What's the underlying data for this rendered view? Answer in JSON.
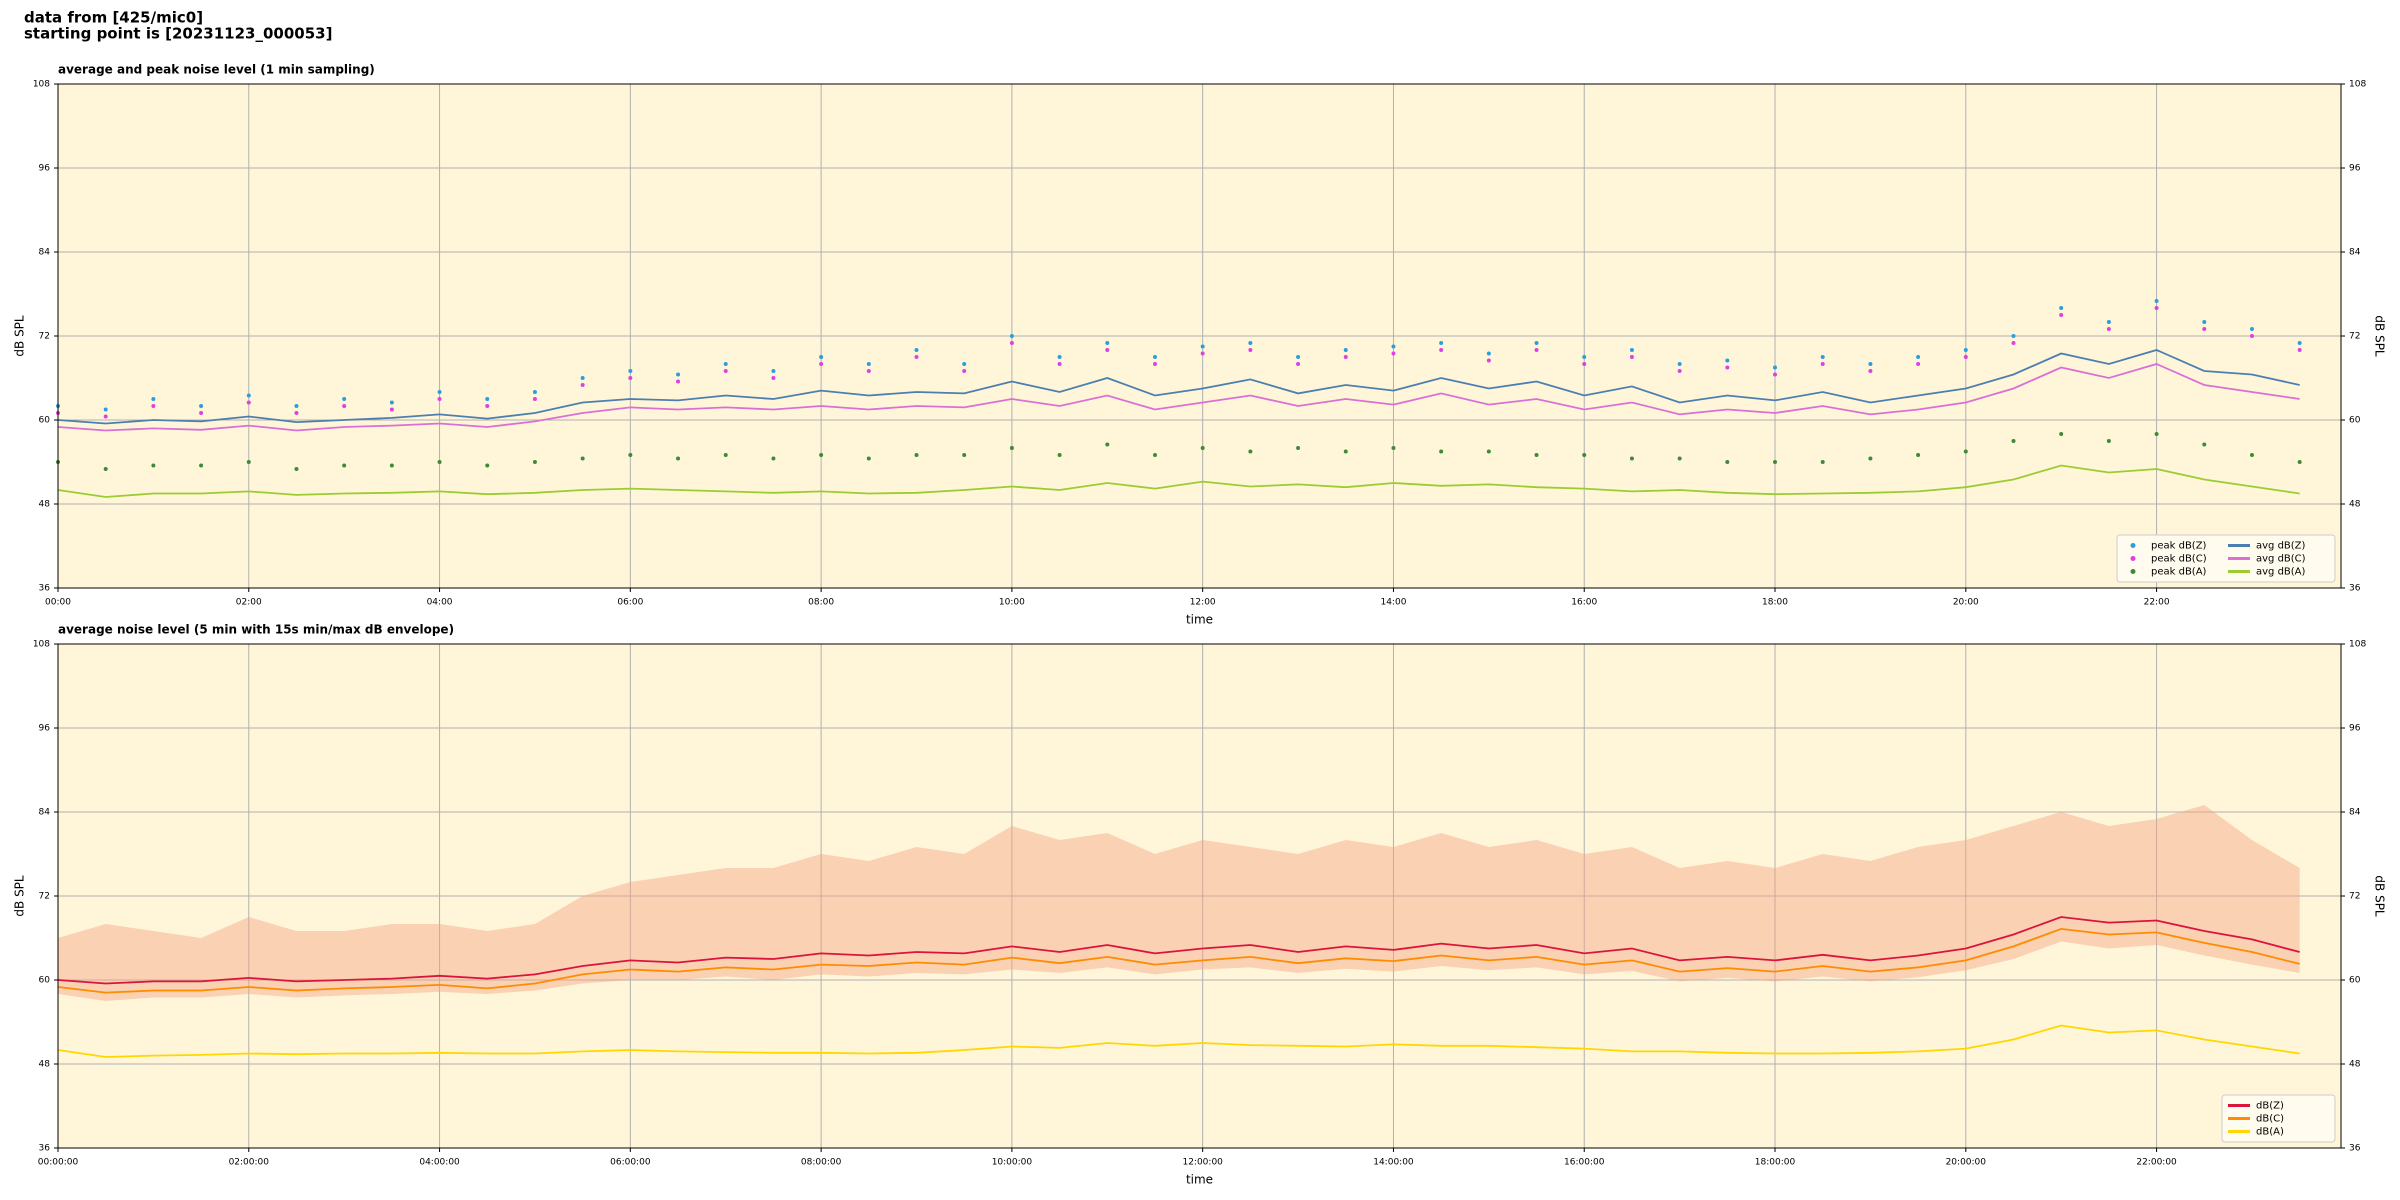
{
  "header": {
    "lines": [
      "data from [425/mic0]",
      "starting point is [20231123_000053]"
    ]
  },
  "chart_data": [
    {
      "type": "line",
      "title": "average and peak noise level (1 min sampling)",
      "xlabel": "time",
      "ylabel": "dB SPL",
      "xlim": [
        0,
        1436
      ],
      "ylim": [
        36,
        108
      ],
      "yticks": [
        36,
        48,
        60,
        72,
        84,
        96,
        108
      ],
      "xticks": [
        {
          "value": 0,
          "label": "00:00"
        },
        {
          "value": 120,
          "label": "02:00"
        },
        {
          "value": 240,
          "label": "04:00"
        },
        {
          "value": 360,
          "label": "06:00"
        },
        {
          "value": 480,
          "label": "08:00"
        },
        {
          "value": 600,
          "label": "10:00"
        },
        {
          "value": 720,
          "label": "12:00"
        },
        {
          "value": 840,
          "label": "14:00"
        },
        {
          "value": 960,
          "label": "16:00"
        },
        {
          "value": 1080,
          "label": "18:00"
        },
        {
          "value": 1200,
          "label": "20:00"
        },
        {
          "value": 1320,
          "label": "22:00"
        }
      ],
      "grid": true,
      "legend": "lower right",
      "legend_columns": 2,
      "background": "#fff6d9",
      "x": [
        0,
        30,
        60,
        90,
        120,
        150,
        180,
        210,
        240,
        270,
        300,
        330,
        360,
        390,
        420,
        450,
        480,
        510,
        540,
        570,
        600,
        630,
        660,
        690,
        720,
        750,
        780,
        810,
        840,
        870,
        900,
        930,
        960,
        990,
        1020,
        1050,
        1080,
        1110,
        1140,
        1170,
        1200,
        1230,
        1260,
        1290,
        1320,
        1350,
        1380,
        1410
      ],
      "series": [
        {
          "name": "peak dB(Z)",
          "style": "scatter",
          "color": "#2a9fe0",
          "values": [
            62,
            61.5,
            63,
            62,
            63.5,
            62,
            63,
            62.5,
            64,
            63,
            64,
            66,
            67,
            66.5,
            68,
            67,
            69,
            68,
            70,
            68,
            72,
            69,
            71,
            69,
            70.5,
            71,
            69,
            70,
            70.5,
            71,
            69.5,
            71,
            69,
            70,
            68,
            68.5,
            67.5,
            69,
            68,
            69,
            70,
            72,
            76,
            74,
            77,
            74,
            73,
            71
          ]
        },
        {
          "name": "peak dB(C)",
          "style": "scatter",
          "color": "#e040e0",
          "values": [
            61,
            60.5,
            62,
            61,
            62.5,
            61,
            62,
            61.5,
            63,
            62,
            63,
            65,
            66,
            65.5,
            67,
            66,
            68,
            67,
            69,
            67,
            71,
            68,
            70,
            68,
            69.5,
            70,
            68,
            69,
            69.5,
            70,
            68.5,
            70,
            68,
            69,
            67,
            67.5,
            66.5,
            68,
            67,
            68,
            69,
            71,
            75,
            73,
            76,
            73,
            72,
            70
          ]
        },
        {
          "name": "peak dB(A)",
          "style": "scatter",
          "color": "#3f8a3a",
          "values": [
            54,
            53,
            53.5,
            53.5,
            54,
            53,
            53.5,
            53.5,
            54,
            53.5,
            54,
            54.5,
            55,
            54.5,
            55,
            54.5,
            55,
            54.5,
            55,
            55,
            56,
            55,
            56.5,
            55,
            56,
            55.5,
            56,
            55.5,
            56,
            55.5,
            55.5,
            55,
            55,
            54.5,
            54.5,
            54,
            54,
            54,
            54.5,
            55,
            55.5,
            57,
            58,
            57,
            58,
            56.5,
            55,
            54
          ]
        },
        {
          "name": "avg dB(Z)",
          "style": "line",
          "color": "#4b7fb0",
          "values": [
            60,
            59.5,
            60,
            59.8,
            60.5,
            59.7,
            60,
            60.3,
            60.8,
            60.2,
            61,
            62.5,
            63,
            62.8,
            63.5,
            63,
            64.2,
            63.5,
            64,
            63.8,
            65.5,
            64,
            66,
            63.5,
            64.5,
            65.8,
            63.8,
            65,
            64.2,
            66,
            64.5,
            65.5,
            63.5,
            64.8,
            62.5,
            63.5,
            62.8,
            64,
            62.5,
            63.5,
            64.5,
            66.5,
            69.5,
            68,
            70,
            67,
            66.5,
            65
          ]
        },
        {
          "name": "avg dB(C)",
          "style": "line",
          "color": "#da70d6",
          "values": [
            59,
            58.5,
            58.8,
            58.6,
            59.2,
            58.5,
            59,
            59.2,
            59.5,
            59,
            59.8,
            61,
            61.8,
            61.5,
            61.8,
            61.5,
            62,
            61.5,
            62,
            61.8,
            63,
            62,
            63.5,
            61.5,
            62.5,
            63.5,
            62,
            63,
            62.2,
            63.8,
            62.2,
            63,
            61.5,
            62.5,
            60.8,
            61.5,
            61,
            62,
            60.8,
            61.5,
            62.5,
            64.5,
            67.5,
            66,
            68,
            65,
            64,
            63
          ]
        },
        {
          "name": "avg dB(A)",
          "style": "line",
          "color": "#9acd32",
          "values": [
            50,
            49,
            49.5,
            49.5,
            49.8,
            49.3,
            49.5,
            49.6,
            49.8,
            49.4,
            49.6,
            50,
            50.2,
            50,
            49.8,
            49.6,
            49.8,
            49.5,
            49.6,
            50,
            50.5,
            50,
            51,
            50.2,
            51.2,
            50.5,
            50.8,
            50.4,
            51,
            50.6,
            50.8,
            50.4,
            50.2,
            49.8,
            50,
            49.6,
            49.4,
            49.5,
            49.6,
            49.8,
            50.4,
            51.5,
            53.5,
            52.5,
            53,
            51.5,
            50.5,
            49.5
          ]
        }
      ]
    },
    {
      "type": "line",
      "title": "average noise level (5 min with 15s min/max dB envelope)",
      "xlabel": "time",
      "ylabel": "dB SPL",
      "xlim": [
        0,
        1436
      ],
      "ylim": [
        36,
        108
      ],
      "yticks": [
        36,
        48,
        60,
        72,
        84,
        96,
        108
      ],
      "xticks": [
        {
          "value": 0,
          "label": "00:00:00"
        },
        {
          "value": 120,
          "label": "02:00:00"
        },
        {
          "value": 240,
          "label": "04:00:00"
        },
        {
          "value": 360,
          "label": "06:00:00"
        },
        {
          "value": 480,
          "label": "08:00:00"
        },
        {
          "value": 600,
          "label": "10:00:00"
        },
        {
          "value": 720,
          "label": "12:00:00"
        },
        {
          "value": 840,
          "label": "14:00:00"
        },
        {
          "value": 960,
          "label": "16:00:00"
        },
        {
          "value": 1080,
          "label": "18:00:00"
        },
        {
          "value": 1200,
          "label": "20:00:00"
        },
        {
          "value": 1320,
          "label": "22:00:00"
        }
      ],
      "grid": true,
      "legend": "lower right",
      "legend_columns": 1,
      "background": "#fff6d9",
      "x": [
        0,
        30,
        60,
        90,
        120,
        150,
        180,
        210,
        240,
        270,
        300,
        330,
        360,
        390,
        420,
        450,
        480,
        510,
        540,
        570,
        600,
        630,
        660,
        690,
        720,
        750,
        780,
        810,
        840,
        870,
        900,
        930,
        960,
        990,
        1020,
        1050,
        1080,
        1110,
        1140,
        1170,
        1200,
        1230,
        1260,
        1290,
        1320,
        1350,
        1380,
        1410
      ],
      "envelope": {
        "color": "#f4a582",
        "lower": [
          58,
          57,
          57.5,
          57.5,
          58,
          57.5,
          57.8,
          58,
          58.3,
          58,
          58.5,
          59.5,
          60,
          60,
          60.5,
          60,
          60.8,
          60.5,
          61,
          60.8,
          61.5,
          61,
          61.8,
          60.8,
          61.5,
          61.8,
          61,
          61.6,
          61.2,
          62,
          61.4,
          61.8,
          60.8,
          61.3,
          59.8,
          60.3,
          59.8,
          60.5,
          59.8,
          60.4,
          61.4,
          63,
          65.5,
          64.5,
          65,
          63.5,
          62.2,
          61
        ],
        "upper": [
          66,
          68,
          67,
          66,
          69,
          67,
          67,
          68,
          68,
          67,
          68,
          72,
          74,
          75,
          76,
          76,
          78,
          77,
          79,
          78,
          82,
          80,
          81,
          78,
          80,
          79,
          78,
          80,
          79,
          81,
          79,
          80,
          78,
          79,
          76,
          77,
          76,
          78,
          77,
          79,
          80,
          82,
          84,
          82,
          83,
          85,
          80,
          76
        ]
      },
      "series": [
        {
          "name": "dB(Z)",
          "style": "line",
          "color": "#dc143c",
          "values": [
            60,
            59.5,
            59.8,
            59.8,
            60.3,
            59.8,
            60,
            60.2,
            60.6,
            60.2,
            60.8,
            62,
            62.8,
            62.5,
            63.2,
            63,
            63.8,
            63.5,
            64,
            63.8,
            64.8,
            64,
            65,
            63.8,
            64.5,
            65,
            64,
            64.8,
            64.3,
            65.2,
            64.5,
            65,
            63.8,
            64.5,
            62.8,
            63.3,
            62.8,
            63.6,
            62.8,
            63.5,
            64.5,
            66.5,
            69,
            68.2,
            68.5,
            67,
            65.8,
            64
          ]
        },
        {
          "name": "dB(C)",
          "style": "line",
          "color": "#ff8c00",
          "values": [
            59,
            58.2,
            58.5,
            58.5,
            59,
            58.5,
            58.8,
            59,
            59.3,
            58.8,
            59.5,
            60.8,
            61.5,
            61.2,
            61.8,
            61.5,
            62.2,
            62,
            62.5,
            62.2,
            63.2,
            62.4,
            63.3,
            62.2,
            62.8,
            63.3,
            62.4,
            63.1,
            62.7,
            63.5,
            62.8,
            63.3,
            62.2,
            62.8,
            61.2,
            61.7,
            61.2,
            62,
            61.2,
            61.8,
            62.8,
            64.8,
            67.3,
            66.5,
            66.8,
            65.3,
            64,
            62.3
          ]
        },
        {
          "name": "dB(A)",
          "style": "line",
          "color": "#ffd700",
          "values": [
            50,
            49,
            49.2,
            49.3,
            49.5,
            49.4,
            49.5,
            49.5,
            49.6,
            49.5,
            49.5,
            49.8,
            50,
            49.8,
            49.7,
            49.6,
            49.6,
            49.5,
            49.6,
            50,
            50.5,
            50.3,
            51,
            50.6,
            51,
            50.7,
            50.6,
            50.5,
            50.8,
            50.6,
            50.6,
            50.4,
            50.2,
            49.8,
            49.8,
            49.6,
            49.5,
            49.5,
            49.6,
            49.8,
            50.2,
            51.5,
            53.5,
            52.5,
            52.8,
            51.5,
            50.5,
            49.5
          ]
        }
      ]
    }
  ]
}
